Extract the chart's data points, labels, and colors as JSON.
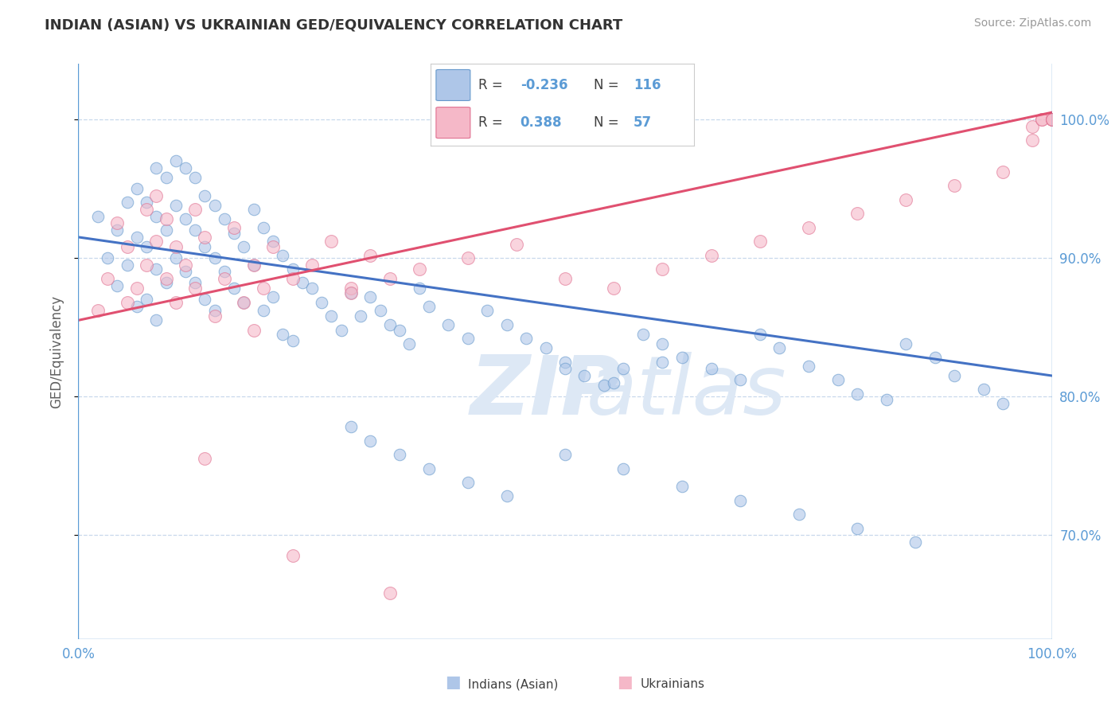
{
  "title": "INDIAN (ASIAN) VS UKRAINIAN GED/EQUIVALENCY CORRELATION CHART",
  "source_text": "Source: ZipAtlas.com",
  "ylabel": "GED/Equivalency",
  "xmin": 0.0,
  "xmax": 1.0,
  "ymin": 0.625,
  "ymax": 1.04,
  "yticks": [
    0.7,
    0.8,
    0.9,
    1.0
  ],
  "ytick_labels": [
    "70.0%",
    "80.0%",
    "90.0%",
    "100.0%"
  ],
  "legend_r_blue": "-0.236",
  "legend_n_blue": "116",
  "legend_r_pink": "0.388",
  "legend_n_pink": "57",
  "blue_fill": "#aec6e8",
  "blue_edge": "#6699cc",
  "pink_fill": "#f5b8c8",
  "pink_edge": "#e07090",
  "trend_blue_color": "#4472c4",
  "trend_pink_color": "#e05070",
  "axis_label_color": "#5b9bd5",
  "grid_color": "#c8d8ec",
  "title_color": "#333333",
  "watermark_color": "#dde8f5",
  "source_color": "#999999",
  "fig_bg": "#ffffff",
  "plot_bg": "#ffffff",
  "blue_trend_x0": 0.0,
  "blue_trend_x1": 1.0,
  "blue_trend_y0": 0.915,
  "blue_trend_y1": 0.815,
  "pink_trend_x0": 0.0,
  "pink_trend_x1": 1.0,
  "pink_trend_y0": 0.855,
  "pink_trend_y1": 1.005,
  "dot_size_blue": 110,
  "dot_size_pink": 130,
  "dot_alpha": 0.6,
  "blue_x": [
    0.02,
    0.03,
    0.04,
    0.04,
    0.05,
    0.05,
    0.06,
    0.06,
    0.06,
    0.07,
    0.07,
    0.07,
    0.08,
    0.08,
    0.08,
    0.08,
    0.09,
    0.09,
    0.09,
    0.1,
    0.1,
    0.1,
    0.11,
    0.11,
    0.11,
    0.12,
    0.12,
    0.12,
    0.13,
    0.13,
    0.13,
    0.14,
    0.14,
    0.14,
    0.15,
    0.15,
    0.16,
    0.16,
    0.17,
    0.17,
    0.18,
    0.18,
    0.19,
    0.19,
    0.2,
    0.2,
    0.21,
    0.21,
    0.22,
    0.22,
    0.23,
    0.24,
    0.25,
    0.26,
    0.27,
    0.28,
    0.29,
    0.3,
    0.31,
    0.32,
    0.33,
    0.34,
    0.35,
    0.36,
    0.38,
    0.4,
    0.42,
    0.44,
    0.46,
    0.48,
    0.5,
    0.52,
    0.54,
    0.56,
    0.58,
    0.6,
    0.62,
    0.65,
    0.68,
    0.7,
    0.72,
    0.75,
    0.78,
    0.8,
    0.83,
    0.85,
    0.88,
    0.9,
    0.93,
    0.95,
    0.28,
    0.3,
    0.33,
    0.36,
    0.4,
    0.44,
    0.5,
    0.56,
    0.62,
    0.68,
    0.74,
    0.8,
    0.86,
    0.5,
    0.55,
    0.6
  ],
  "blue_y": [
    0.93,
    0.9,
    0.92,
    0.88,
    0.94,
    0.895,
    0.95,
    0.915,
    0.865,
    0.94,
    0.908,
    0.87,
    0.965,
    0.93,
    0.892,
    0.855,
    0.958,
    0.92,
    0.882,
    0.97,
    0.938,
    0.9,
    0.965,
    0.928,
    0.89,
    0.958,
    0.92,
    0.882,
    0.945,
    0.908,
    0.87,
    0.938,
    0.9,
    0.862,
    0.928,
    0.89,
    0.918,
    0.878,
    0.908,
    0.868,
    0.935,
    0.895,
    0.922,
    0.862,
    0.912,
    0.872,
    0.902,
    0.845,
    0.892,
    0.84,
    0.882,
    0.878,
    0.868,
    0.858,
    0.848,
    0.875,
    0.858,
    0.872,
    0.862,
    0.852,
    0.848,
    0.838,
    0.878,
    0.865,
    0.852,
    0.842,
    0.862,
    0.852,
    0.842,
    0.835,
    0.825,
    0.815,
    0.808,
    0.82,
    0.845,
    0.838,
    0.828,
    0.82,
    0.812,
    0.845,
    0.835,
    0.822,
    0.812,
    0.802,
    0.798,
    0.838,
    0.828,
    0.815,
    0.805,
    0.795,
    0.778,
    0.768,
    0.758,
    0.748,
    0.738,
    0.728,
    0.758,
    0.748,
    0.735,
    0.725,
    0.715,
    0.705,
    0.695,
    0.82,
    0.81,
    0.825
  ],
  "pink_x": [
    0.02,
    0.03,
    0.04,
    0.05,
    0.05,
    0.06,
    0.07,
    0.07,
    0.08,
    0.08,
    0.09,
    0.09,
    0.1,
    0.1,
    0.11,
    0.12,
    0.12,
    0.13,
    0.14,
    0.15,
    0.16,
    0.17,
    0.18,
    0.19,
    0.2,
    0.22,
    0.24,
    0.26,
    0.28,
    0.3,
    0.32,
    0.35,
    0.4,
    0.45,
    0.5,
    0.55,
    0.6,
    0.65,
    0.7,
    0.75,
    0.8,
    0.85,
    0.9,
    0.95,
    0.98,
    0.98,
    0.99,
    0.99,
    1.0,
    1.0,
    1.0,
    1.0,
    0.13,
    0.22,
    0.32,
    0.18,
    0.28
  ],
  "pink_y": [
    0.862,
    0.885,
    0.925,
    0.868,
    0.908,
    0.878,
    0.895,
    0.935,
    0.912,
    0.945,
    0.885,
    0.928,
    0.908,
    0.868,
    0.895,
    0.935,
    0.878,
    0.915,
    0.858,
    0.885,
    0.922,
    0.868,
    0.848,
    0.878,
    0.908,
    0.885,
    0.895,
    0.912,
    0.878,
    0.902,
    0.885,
    0.892,
    0.9,
    0.91,
    0.885,
    0.878,
    0.892,
    0.902,
    0.912,
    0.922,
    0.932,
    0.942,
    0.952,
    0.962,
    0.985,
    0.995,
    1.0,
    1.0,
    1.0,
    1.0,
    1.0,
    1.0,
    0.755,
    0.685,
    0.658,
    0.895,
    0.875
  ]
}
